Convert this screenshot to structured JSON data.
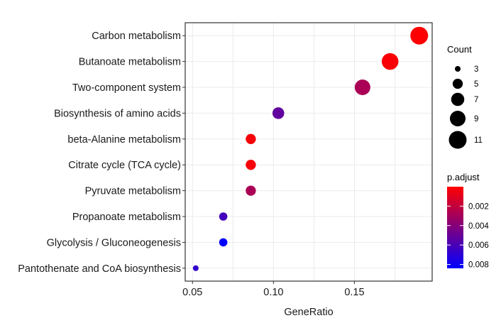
{
  "chart_data": {
    "type": "scatter",
    "subtype": "dotplot",
    "title": "",
    "xlabel": "GeneRatio",
    "ylabel": "",
    "xlim": [
      0.0455,
      0.198
    ],
    "x_ticks": [
      0.05,
      0.1,
      0.15
    ],
    "x_tick_labels": [
      "0.05",
      "0.10",
      "0.15"
    ],
    "grid": true,
    "categories": [
      "Carbon metabolism",
      "Butanoate metabolism",
      "Two-component system",
      "Biosynthesis of amino acids",
      "beta-Alanine metabolism",
      "Citrate cycle (TCA cycle)",
      "Pyruvate metabolism",
      "Propanoate metabolism",
      "Glycolysis / Gluconeogenesis",
      "Pantothenate and CoA biosynthesis"
    ],
    "points": [
      {
        "term": "Carbon metabolism",
        "gene_ratio": 0.19,
        "count": 11,
        "p_adjust": 0.0001
      },
      {
        "term": "Butanoate metabolism",
        "gene_ratio": 0.172,
        "count": 10,
        "p_adjust": 0.0002
      },
      {
        "term": "Two-component system",
        "gene_ratio": 0.155,
        "count": 9,
        "p_adjust": 0.0028
      },
      {
        "term": "Biosynthesis of amino acids",
        "gene_ratio": 0.103,
        "count": 6,
        "p_adjust": 0.0052
      },
      {
        "term": "beta-Alanine metabolism",
        "gene_ratio": 0.086,
        "count": 5,
        "p_adjust": 0.0003
      },
      {
        "term": "Citrate cycle (TCA cycle)",
        "gene_ratio": 0.086,
        "count": 5,
        "p_adjust": 0.0003
      },
      {
        "term": "Pyruvate metabolism",
        "gene_ratio": 0.086,
        "count": 5,
        "p_adjust": 0.0028
      },
      {
        "term": "Propanoate metabolism",
        "gene_ratio": 0.069,
        "count": 4,
        "p_adjust": 0.0062
      },
      {
        "term": "Glycolysis / Gluconeogenesis",
        "gene_ratio": 0.069,
        "count": 4,
        "p_adjust": 0.0084
      },
      {
        "term": "Pantothenate and CoA biosynthesis",
        "gene_ratio": 0.052,
        "count": 3,
        "p_adjust": 0.0068
      }
    ],
    "size_legend": {
      "title": "Count",
      "placement": "right",
      "entries": [
        {
          "label": "3",
          "value": 3
        },
        {
          "label": "5",
          "value": 5
        },
        {
          "label": "7",
          "value": 7
        },
        {
          "label": "9",
          "value": 9
        },
        {
          "label": "11",
          "value": 11
        }
      ]
    },
    "color_legend": {
      "title": "p.adjust",
      "placement": "right",
      "low_color": "#FF0000",
      "high_color": "#0000FF",
      "range": [
        0.0,
        0.0084
      ],
      "ticks": [
        {
          "label": "0.002",
          "value": 0.002
        },
        {
          "label": "0.004",
          "value": 0.004
        },
        {
          "label": "0.006",
          "value": 0.006
        },
        {
          "label": "0.008",
          "value": 0.008
        }
      ]
    }
  }
}
